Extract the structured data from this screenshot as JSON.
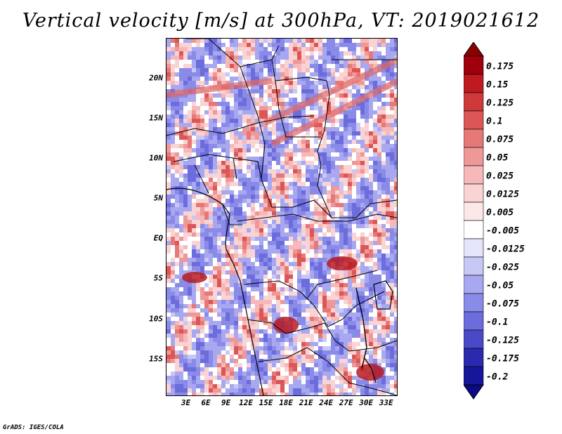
{
  "title": "Vertical velocity [m/s] at 300hPa, VT: 2019021612",
  "credit": "GrADS: IGES/COLA",
  "map": {
    "lon_range": [
      0,
      34.5
    ],
    "lat_range": [
      -19.5,
      25
    ],
    "lat_ticks": [
      {
        "value": 20,
        "label": "20N"
      },
      {
        "value": 15,
        "label": "15N"
      },
      {
        "value": 10,
        "label": "10N"
      },
      {
        "value": 5,
        "label": "5N"
      },
      {
        "value": 0,
        "label": "EQ"
      },
      {
        "value": -5,
        "label": "5S"
      },
      {
        "value": -10,
        "label": "10S"
      },
      {
        "value": -15,
        "label": "15S"
      }
    ],
    "lon_ticks": [
      {
        "value": 3,
        "label": "3E"
      },
      {
        "value": 6,
        "label": "6E"
      },
      {
        "value": 9,
        "label": "9E"
      },
      {
        "value": 12,
        "label": "12E"
      },
      {
        "value": 15,
        "label": "15E"
      },
      {
        "value": 18,
        "label": "18E"
      },
      {
        "value": 21,
        "label": "21E"
      },
      {
        "value": 24,
        "label": "24E"
      },
      {
        "value": 27,
        "label": "27E"
      },
      {
        "value": 30,
        "label": "30E"
      },
      {
        "value": 33,
        "label": "33E"
      }
    ]
  },
  "colorbar": {
    "levels": [
      {
        "label": "0.175",
        "color": "#a0000e"
      },
      {
        "label": "0.15",
        "color": "#be1a20"
      },
      {
        "label": "0.125",
        "color": "#d0393a"
      },
      {
        "label": "0.1",
        "color": "#dc5656"
      },
      {
        "label": "0.075",
        "color": "#e67878"
      },
      {
        "label": "0.05",
        "color": "#ef9898"
      },
      {
        "label": "0.025",
        "color": "#f6b8b8"
      },
      {
        "label": "0.0125",
        "color": "#fad4d4"
      },
      {
        "label": "0.005",
        "color": "#fde8e8"
      },
      {
        "label": "-0.005",
        "color": "#ffffff"
      },
      {
        "label": "-0.0125",
        "color": "#e4e4fb"
      },
      {
        "label": "-0.025",
        "color": "#c8c8f6"
      },
      {
        "label": "-0.05",
        "color": "#a8a8f0"
      },
      {
        "label": "-0.075",
        "color": "#8a8ae8"
      },
      {
        "label": "-0.1",
        "color": "#6c6cdc"
      },
      {
        "label": "-0.125",
        "color": "#4a4ac8"
      },
      {
        "label": "-0.175",
        "color": "#2a2ab0"
      },
      {
        "label": "-0.2",
        "color": "#16169a"
      }
    ],
    "top_extension_color": "#8c0000",
    "bottom_extension_color": "#0a0a86"
  }
}
